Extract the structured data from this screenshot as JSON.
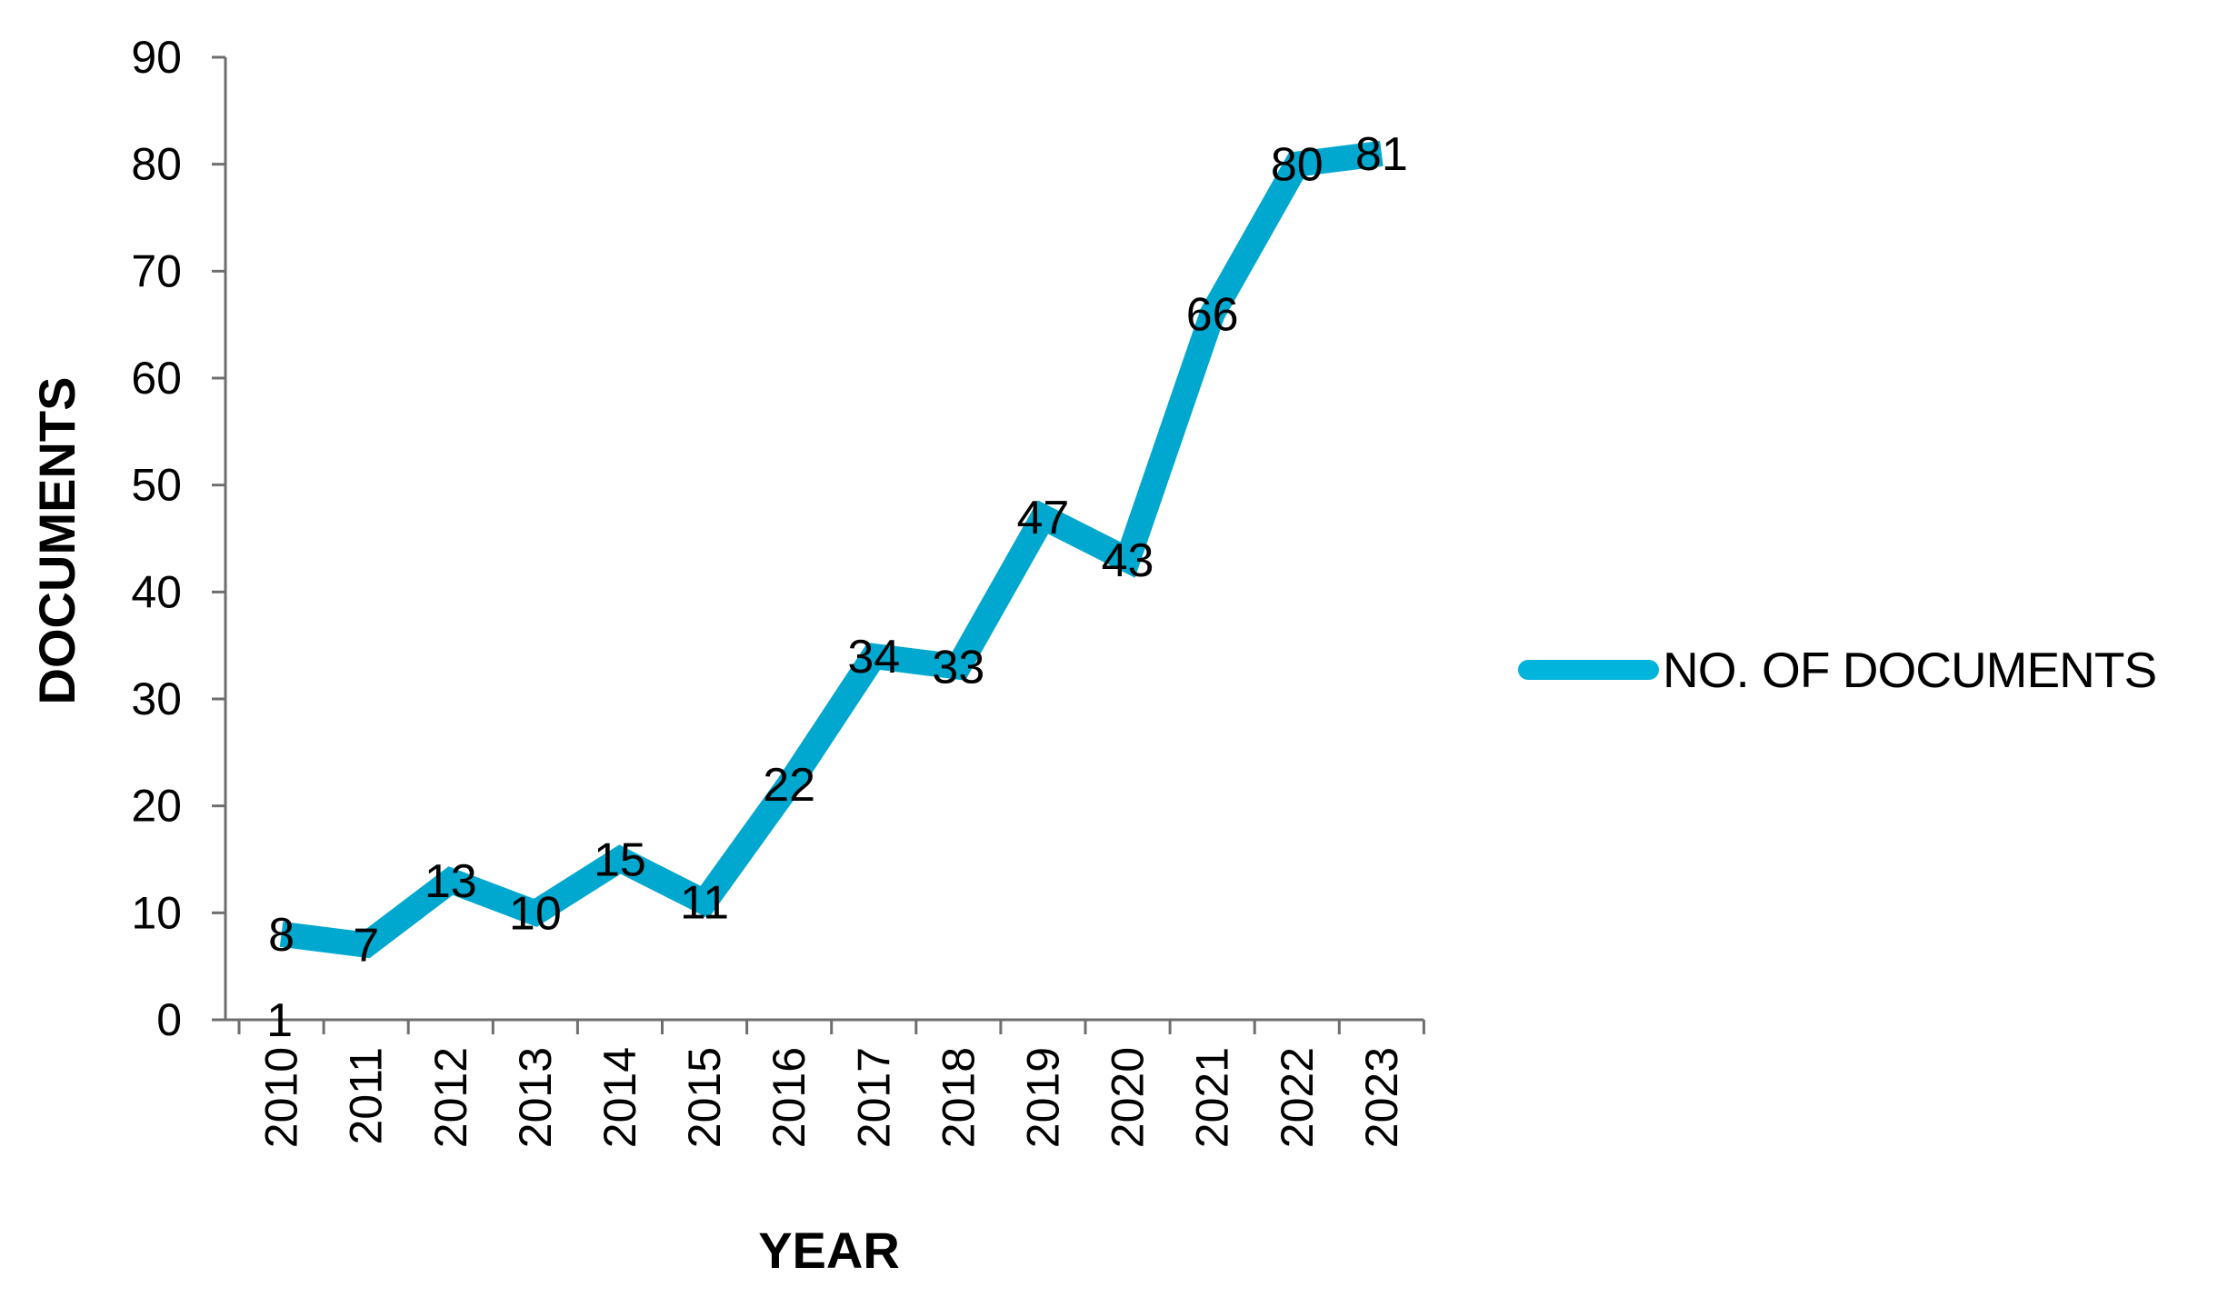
{
  "chart_data": {
    "type": "line",
    "title": "",
    "xlabel": "YEAR",
    "ylabel": "DOCUMENTS",
    "categories": [
      "2010",
      "2011",
      "2012",
      "2013",
      "2014",
      "2015",
      "2016",
      "2017",
      "2018",
      "2019",
      "2020",
      "2021",
      "2022",
      "2023"
    ],
    "series": [
      {
        "name": "NO. OF DOCUMENTS",
        "values": [
          8,
          7,
          13,
          10,
          15,
          11,
          22,
          34,
          33,
          47,
          43,
          66,
          80,
          81
        ],
        "color": "#00a8d0"
      }
    ],
    "data_labels": [
      "8",
      "7",
      "13",
      "10",
      "15",
      "11",
      "22",
      "34",
      "33",
      "47",
      "43",
      "66",
      "80",
      "81"
    ],
    "extra_annotations": [
      {
        "text": "1",
        "x": "2010",
        "y": 0
      }
    ],
    "ylim": [
      0,
      90
    ],
    "yticks": [
      0,
      10,
      20,
      30,
      40,
      50,
      60,
      70,
      80,
      90
    ],
    "grid": false,
    "legend_position": "right"
  },
  "legend": {
    "label": "NO. OF DOCUMENTS"
  },
  "axes": {
    "x_title": "YEAR",
    "y_title": "DOCUMENTS"
  }
}
